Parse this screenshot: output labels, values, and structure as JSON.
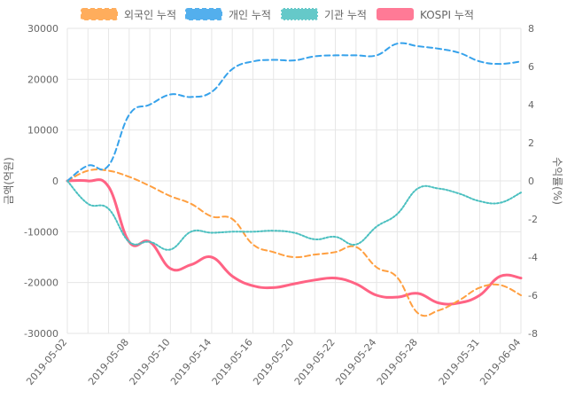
{
  "chart_data": {
    "type": "line",
    "x": [
      "2019-05-02",
      "2019-05-03",
      "2019-05-07",
      "2019-05-08",
      "2019-05-09",
      "2019-05-10",
      "2019-05-13",
      "2019-05-14",
      "2019-05-15",
      "2019-05-16",
      "2019-05-17",
      "2019-05-20",
      "2019-05-21",
      "2019-05-22",
      "2019-05-23",
      "2019-05-24",
      "2019-05-27",
      "2019-05-28",
      "2019-05-29",
      "2019-05-30",
      "2019-05-31",
      "2019-06-03",
      "2019-06-04"
    ],
    "x_tick_labels": [
      "2019-05-02",
      "2019-05-08",
      "2019-05-10",
      "2019-05-14",
      "2019-05-16",
      "2019-05-20",
      "2019-05-22",
      "2019-05-24",
      "2019-05-28",
      "2019-05-31",
      "2019-06-04"
    ],
    "series": [
      {
        "name": "외국인 누적",
        "axis": "left",
        "color": "#ff9f40",
        "dash": "dashed",
        "values": [
          0,
          2000,
          2000,
          800,
          -1000,
          -3000,
          -4500,
          -7000,
          -7500,
          -12500,
          -14000,
          -15000,
          -14500,
          -14000,
          -13000,
          -17000,
          -19000,
          -26000,
          -25500,
          -23500,
          -21000,
          -20500,
          -22500
        ]
      },
      {
        "name": "개인 누적",
        "axis": "left",
        "color": "#36a2eb",
        "dash": "dashed",
        "values": [
          0,
          3000,
          3000,
          13000,
          15000,
          17000,
          16500,
          17500,
          22000,
          23500,
          23800,
          23700,
          24500,
          24700,
          24700,
          24700,
          27000,
          26500,
          26000,
          25200,
          23500,
          23000,
          23500
        ]
      },
      {
        "name": "기관 누적",
        "axis": "left",
        "color": "#4bc0c0",
        "dash": "dotted",
        "values": [
          0,
          -4500,
          -5500,
          -12000,
          -12000,
          -13500,
          -10000,
          -10200,
          -10000,
          -10000,
          -9800,
          -10200,
          -11500,
          -11000,
          -12500,
          -9000,
          -6500,
          -1500,
          -1500,
          -2500,
          -4000,
          -4300,
          -2300
        ]
      },
      {
        "name": "KOSPI 누적",
        "axis": "right",
        "color": "#ff6384",
        "dash": "solid",
        "values": [
          0,
          0,
          -0.3,
          -3.2,
          -3.2,
          -4.6,
          -4.4,
          -4.0,
          -5.0,
          -5.5,
          -5.6,
          -5.4,
          -5.2,
          -5.1,
          -5.4,
          -6.0,
          -6.1,
          -5.9,
          -6.4,
          -6.4,
          -6.0,
          -5.0,
          -5.1
        ]
      }
    ],
    "ylabel": "금액(억원)",
    "y2label": "수익률(%)",
    "ylim": [
      -30000,
      30000
    ],
    "y_ticks": [
      30000,
      20000,
      10000,
      0,
      -10000,
      -20000,
      -30000
    ],
    "y2lim": [
      -8,
      8
    ],
    "y2_ticks": [
      8,
      6,
      4,
      2,
      0,
      -2,
      -4,
      -6,
      -8
    ],
    "legend_position": "top",
    "grid": true,
    "zero_line_color": "#9e9e9e"
  }
}
